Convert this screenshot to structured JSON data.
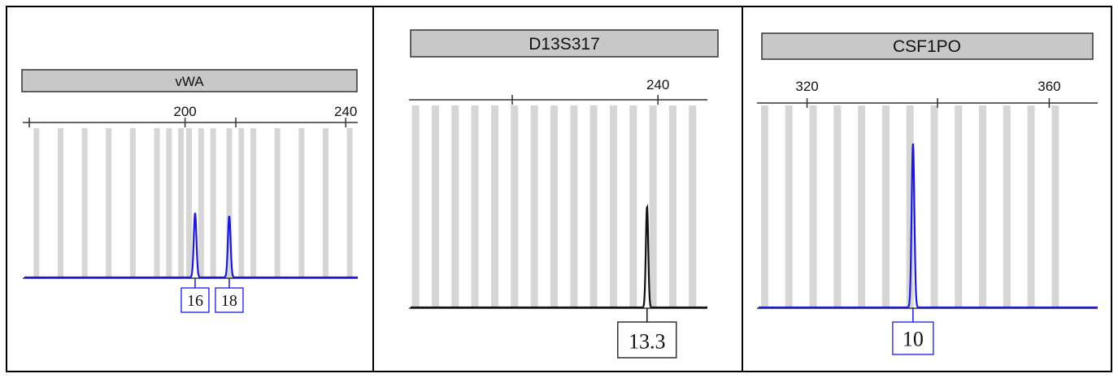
{
  "colors": {
    "blue": "#1a1ad6",
    "black": "#111111",
    "bin": "#d6d6d6",
    "header_fill": "#c8c8c8"
  },
  "chart_data": [
    {
      "type": "line",
      "title": "vWA",
      "x_ticks": [
        200,
        240
      ],
      "xlim": [
        160,
        243
      ],
      "trace_color": "blue",
      "bins_x": [
        163,
        169,
        175,
        181,
        187,
        193,
        196,
        199,
        201,
        204,
        207,
        211,
        214,
        217,
        223,
        229,
        235,
        241
      ],
      "peaks": [
        {
          "x": 202.5,
          "height": 0.43
        },
        {
          "x": 211,
          "height": 0.41
        }
      ],
      "alleles": [
        "16",
        "18"
      ]
    },
    {
      "type": "line",
      "title": "D13S317",
      "x_ticks": [
        240
      ],
      "xlim": [
        190,
        250
      ],
      "trace_color": "black",
      "bins_x": [
        191,
        195,
        199,
        203,
        207,
        211,
        215,
        219,
        223,
        227,
        231,
        235,
        239,
        243,
        247
      ],
      "peaks": [
        {
          "x": 237.8,
          "height": 0.5
        }
      ],
      "alleles": [
        "13.3"
      ]
    },
    {
      "type": "line",
      "title": "CSF1PO",
      "x_ticks": [
        320,
        360
      ],
      "xlim": [
        312,
        368
      ],
      "trace_color": "blue",
      "bins_x": [
        313,
        317,
        321,
        325,
        329,
        333,
        337,
        341,
        345,
        349,
        353,
        357,
        361
      ],
      "peaks": [
        {
          "x": 337.5,
          "height": 0.81
        }
      ],
      "alleles": [
        "10"
      ]
    }
  ]
}
